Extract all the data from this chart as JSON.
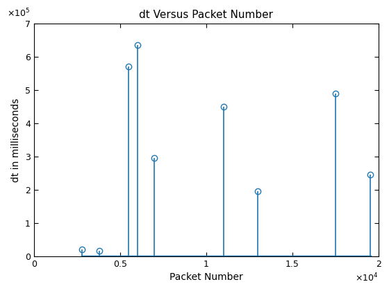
{
  "title": "dt Versus Packet Number",
  "xlabel": "Packet Number",
  "ylabel": "dt in milliseconds",
  "xlim": [
    0,
    20000
  ],
  "ylim": [
    0,
    700000
  ],
  "x": [
    2800,
    3800,
    5500,
    6000,
    7000,
    11000,
    13000,
    17500,
    19500
  ],
  "y": [
    20000,
    17000,
    570000,
    635000,
    295000,
    450000,
    195000,
    490000,
    245000
  ],
  "stem_color": "#1f77b4",
  "baseline_color": "#1f77b4",
  "background_color": "#ffffff",
  "xtick_vals": [
    0,
    5000,
    10000,
    15000,
    20000
  ],
  "xtick_labels": [
    "0",
    "0.5",
    "1",
    "1.5",
    "2"
  ],
  "ytick_vals": [
    0,
    100000,
    200000,
    300000,
    400000,
    500000,
    600000,
    700000
  ],
  "ytick_labels": [
    "0",
    "1",
    "2",
    "3",
    "4",
    "5",
    "6",
    "7"
  ],
  "x_scale_label": "\\times10^4",
  "y_scale_label": "\\times10^5"
}
